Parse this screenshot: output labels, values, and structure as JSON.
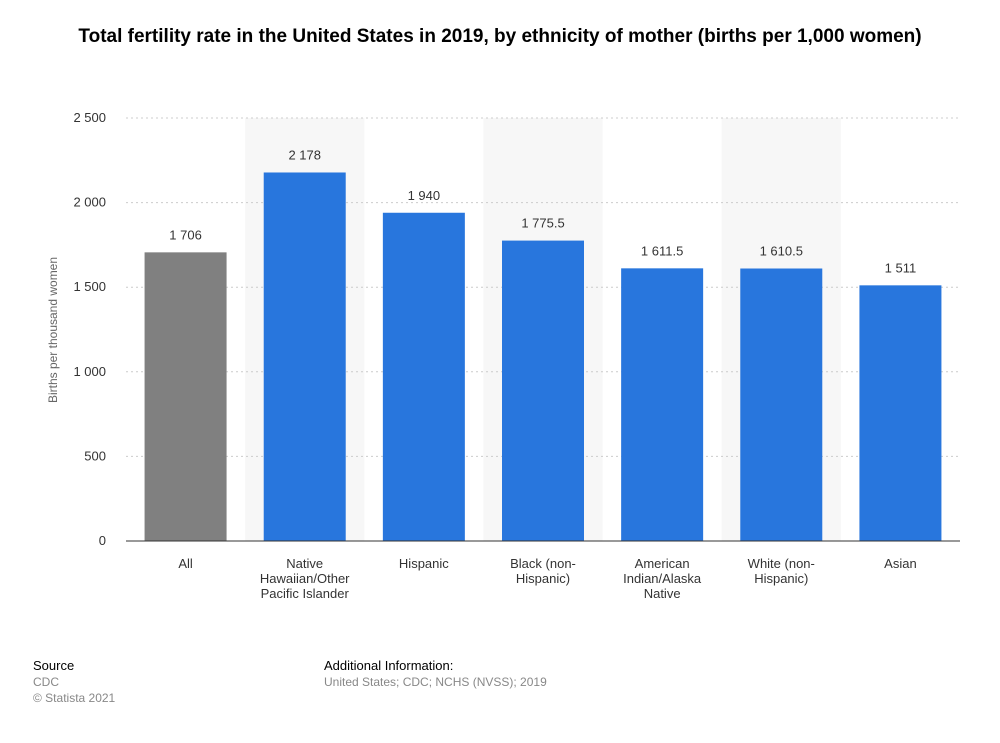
{
  "chart_data": {
    "type": "bar",
    "title": "Total fertility rate in the United States in 2019, by ethnicity of mother (births per 1,000 women)",
    "ylabel": "Births per thousand women",
    "xlabel": "",
    "ylim": [
      0,
      2500
    ],
    "yticks": [
      0,
      500,
      1000,
      1500,
      2000,
      2500
    ],
    "ytick_labels": [
      "0",
      "500",
      "1 000",
      "1 500",
      "2 000",
      "2 500"
    ],
    "grid": true,
    "categories": [
      [
        "All"
      ],
      [
        "Native",
        "Hawaiian/Other",
        "Pacific Islander"
      ],
      [
        "Hispanic"
      ],
      [
        "Black (non-",
        "Hispanic)"
      ],
      [
        "American",
        "Indian/Alaska",
        "Native"
      ],
      [
        "White (non-",
        "Hispanic)"
      ],
      [
        "Asian"
      ]
    ],
    "values": [
      1706,
      2178,
      1940,
      1775.5,
      1611.5,
      1610.5,
      1511
    ],
    "value_labels": [
      "1 706",
      "2 178",
      "1 940",
      "1 775.5",
      "1 611.5",
      "1 610.5",
      "1 511"
    ],
    "colors": {
      "highlight": "#808080",
      "bar": "#2876dd",
      "band": "#f7f7f7",
      "grid": "#cccccc",
      "axis": "#333333"
    },
    "highlight_index": 0
  },
  "footer": {
    "source_title": "Source",
    "source_lines": [
      "CDC",
      "© Statista 2021"
    ],
    "info_title": "Additional Information:",
    "info_text": "United States; CDC; NCHS (NVSS); 2019"
  }
}
